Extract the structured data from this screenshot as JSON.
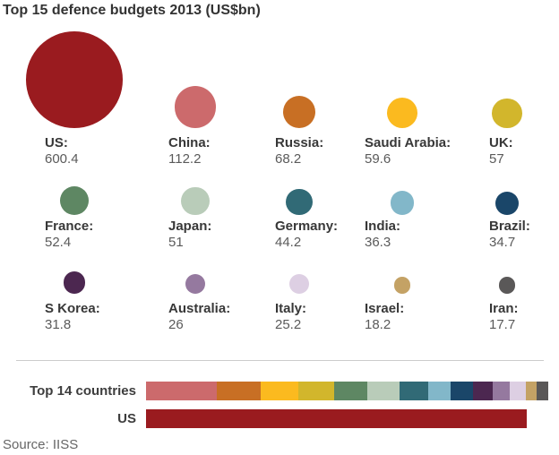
{
  "chart_data": {
    "type": "bubble",
    "title": "Top 15 defence budgets 2013 (US$bn)",
    "source": "Source: IISS",
    "unit": "US$bn",
    "layout_hints": {
      "bubble_area_proportional_to_value": true,
      "rows": 3,
      "columns": 5,
      "comparison_bars_at_bottom": true
    },
    "countries": [
      {
        "name": "US",
        "label": "US:",
        "value": 600.4,
        "display": "600.4",
        "color": "#9a1b1f"
      },
      {
        "name": "China",
        "label": "China:",
        "value": 112.2,
        "display": "112.2",
        "color": "#cc6a6c"
      },
      {
        "name": "Russia",
        "label": "Russia:",
        "value": 68.2,
        "display": "68.2",
        "color": "#c86f24"
      },
      {
        "name": "Saudi Arabia",
        "label": "Saudi Arabia:",
        "value": 59.6,
        "display": "59.6",
        "color": "#fbba1f"
      },
      {
        "name": "UK",
        "label": "UK:",
        "value": 57,
        "display": "57",
        "color": "#d2b62c"
      },
      {
        "name": "France",
        "label": "France:",
        "value": 52.4,
        "display": "52.4",
        "color": "#5e8763"
      },
      {
        "name": "Japan",
        "label": "Japan:",
        "value": 51,
        "display": "51",
        "color": "#b9ccb9"
      },
      {
        "name": "Germany",
        "label": "Germany:",
        "value": 44.2,
        "display": "44.2",
        "color": "#316a76"
      },
      {
        "name": "India",
        "label": "India:",
        "value": 36.3,
        "display": "36.3",
        "color": "#82b7c9"
      },
      {
        "name": "Brazil",
        "label": "Brazil:",
        "value": 34.7,
        "display": "34.7",
        "color": "#1a4669"
      },
      {
        "name": "S Korea",
        "label": "S Korea:",
        "value": 31.8,
        "display": "31.8",
        "color": "#4c2750"
      },
      {
        "name": "Australia",
        "label": "Australia:",
        "value": 26,
        "display": "26",
        "color": "#95799f"
      },
      {
        "name": "Italy",
        "label": "Italy:",
        "value": 25.2,
        "display": "25.2",
        "color": "#ddcfe3"
      },
      {
        "name": "Israel",
        "label": "Israel:",
        "value": 18.2,
        "display": "18.2",
        "color": "#c4a265"
      },
      {
        "name": "Iran",
        "label": "Iran:",
        "value": 17.7,
        "display": "17.7",
        "color": "#5a5858"
      }
    ],
    "comparison": {
      "top14_label": "Top 14 countries",
      "top14_total": 634.5,
      "us_label": "US",
      "us_value": 600.4
    }
  }
}
